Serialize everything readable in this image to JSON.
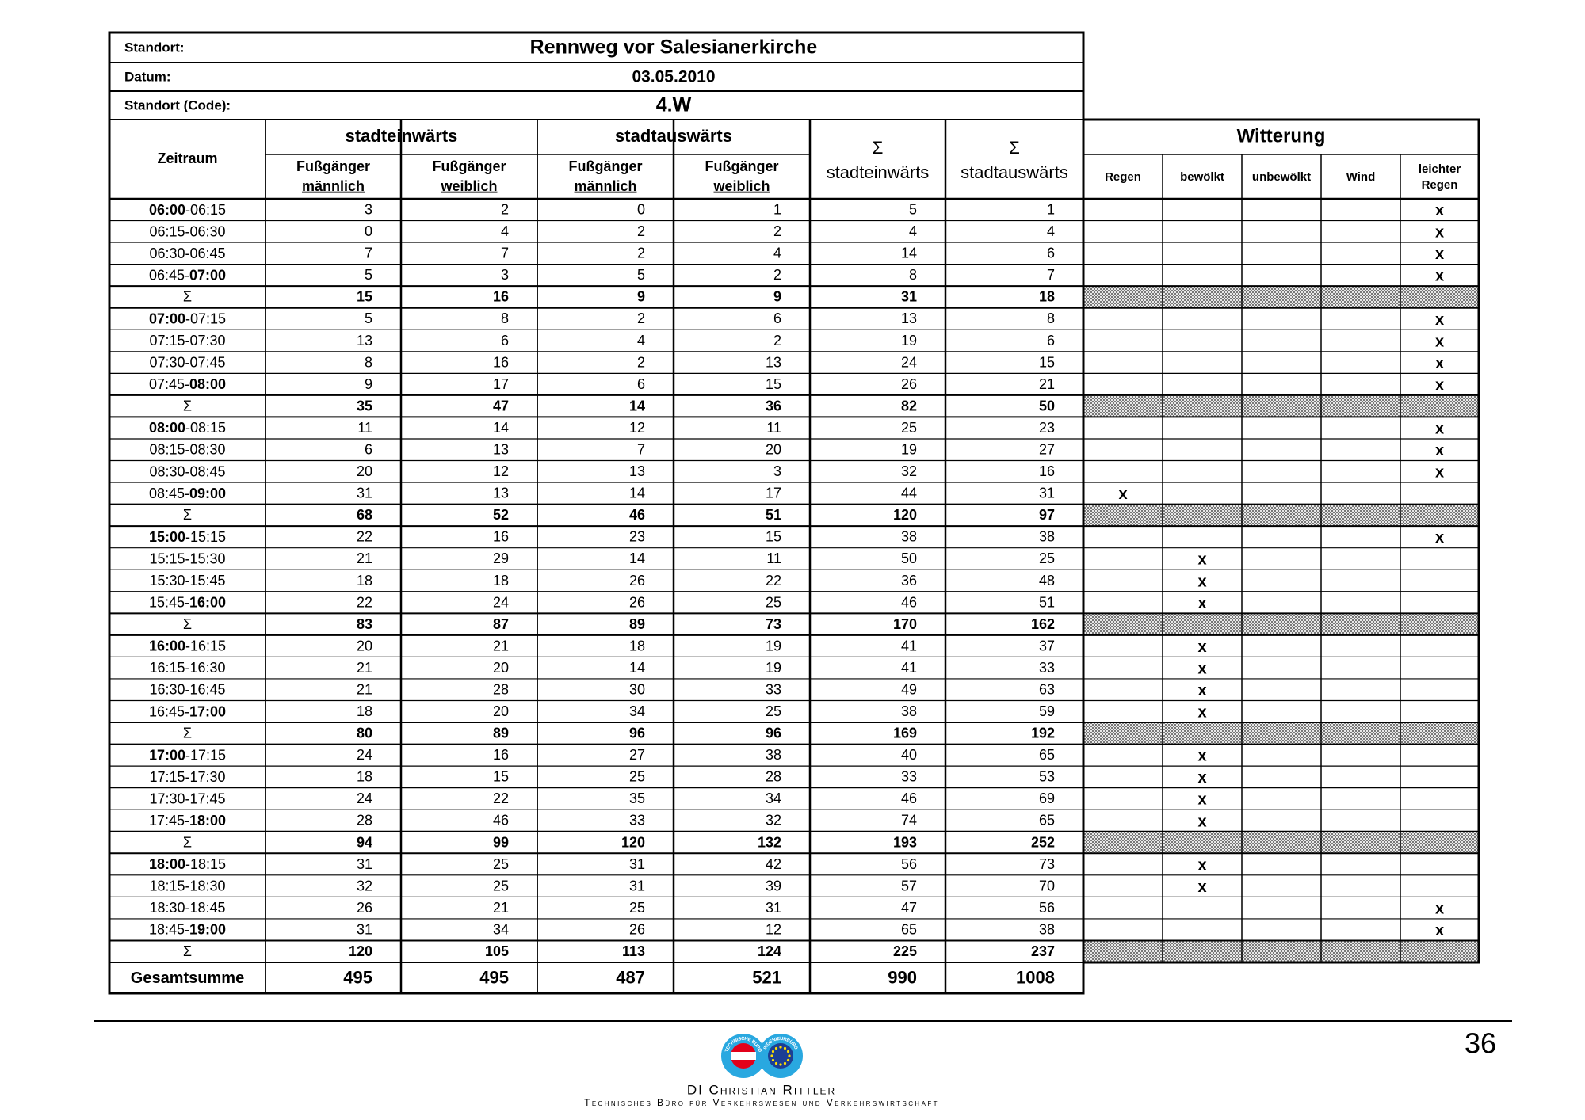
{
  "header": {
    "location_label": "Standort:",
    "location": "Rennweg vor Salesianerkirche",
    "date_label": "Datum:",
    "date": "03.05.2010",
    "code_label": "Standort (Code):",
    "code": "4.W"
  },
  "columns": {
    "time": "Zeitraum",
    "groups": [
      "stadteinwärts",
      "stadtauswärts"
    ],
    "sub": [
      {
        "line1": "Fußgänger",
        "line2": "männlich"
      },
      {
        "line1": "Fußgänger",
        "line2": "weiblich"
      },
      {
        "line1": "Fußgänger",
        "line2": "männlich"
      },
      {
        "line1": "Fußgänger",
        "line2": "weiblich"
      }
    ],
    "sums": [
      {
        "symbol": "Σ",
        "label": "stadteinwärts"
      },
      {
        "symbol": "Σ",
        "label": "stadtauswärts"
      }
    ]
  },
  "weather": {
    "title": "Witterung",
    "columns": [
      [
        "Regen"
      ],
      [
        "bewölkt"
      ],
      [
        "unbewölkt"
      ],
      [
        "Wind"
      ],
      [
        "leichter",
        "Regen"
      ]
    ]
  },
  "blocks": [
    {
      "rows": [
        {
          "time": "06:00-06:15",
          "counts": [
            3,
            2,
            0,
            1,
            5,
            1
          ],
          "weather": [
            null,
            null,
            null,
            null,
            "x"
          ]
        },
        {
          "time": "06:15-06:30",
          "counts": [
            0,
            4,
            2,
            2,
            4,
            4
          ],
          "weather": [
            null,
            null,
            null,
            null,
            "x"
          ]
        },
        {
          "time": "06:30-06:45",
          "counts": [
            7,
            7,
            2,
            4,
            14,
            6
          ],
          "weather": [
            null,
            null,
            null,
            null,
            "x"
          ]
        },
        {
          "time": "06:45-07:00",
          "counts": [
            5,
            3,
            5,
            2,
            8,
            7
          ],
          "weather": [
            null,
            null,
            null,
            null,
            "x"
          ]
        }
      ],
      "sum": {
        "label": "Σ",
        "counts": [
          15,
          16,
          9,
          9,
          31,
          18
        ]
      }
    },
    {
      "rows": [
        {
          "time": "07:00-07:15",
          "counts": [
            5,
            8,
            2,
            6,
            13,
            8
          ],
          "weather": [
            null,
            null,
            null,
            null,
            "x"
          ]
        },
        {
          "time": "07:15-07:30",
          "counts": [
            13,
            6,
            4,
            2,
            19,
            6
          ],
          "weather": [
            null,
            null,
            null,
            null,
            "x"
          ]
        },
        {
          "time": "07:30-07:45",
          "counts": [
            8,
            16,
            2,
            13,
            24,
            15
          ],
          "weather": [
            null,
            null,
            null,
            null,
            "x"
          ]
        },
        {
          "time": "07:45-08:00",
          "counts": [
            9,
            17,
            6,
            15,
            26,
            21
          ],
          "weather": [
            null,
            null,
            null,
            null,
            "x"
          ]
        }
      ],
      "sum": {
        "label": "Σ",
        "counts": [
          35,
          47,
          14,
          36,
          82,
          50
        ]
      }
    },
    {
      "rows": [
        {
          "time": "08:00-08:15",
          "counts": [
            11,
            14,
            12,
            11,
            25,
            23
          ],
          "weather": [
            null,
            null,
            null,
            null,
            "x"
          ]
        },
        {
          "time": "08:15-08:30",
          "counts": [
            6,
            13,
            7,
            20,
            19,
            27
          ],
          "weather": [
            null,
            null,
            null,
            null,
            "x"
          ]
        },
        {
          "time": "08:30-08:45",
          "counts": [
            20,
            12,
            13,
            3,
            32,
            16
          ],
          "weather": [
            null,
            null,
            null,
            null,
            "x"
          ]
        },
        {
          "time": "08:45-09:00",
          "counts": [
            31,
            13,
            14,
            17,
            44,
            31
          ],
          "weather": [
            "x",
            null,
            null,
            null,
            null
          ]
        }
      ],
      "sum": {
        "label": "Σ",
        "counts": [
          68,
          52,
          46,
          51,
          120,
          97
        ]
      }
    },
    {
      "rows": [
        {
          "time": "15:00-15:15",
          "counts": [
            22,
            16,
            23,
            15,
            38,
            38
          ],
          "weather": [
            null,
            null,
            null,
            null,
            "x"
          ]
        },
        {
          "time": "15:15-15:30",
          "counts": [
            21,
            29,
            14,
            11,
            50,
            25
          ],
          "weather": [
            null,
            "x",
            null,
            null,
            null
          ]
        },
        {
          "time": "15:30-15:45",
          "counts": [
            18,
            18,
            26,
            22,
            36,
            48
          ],
          "weather": [
            null,
            "x",
            null,
            null,
            null
          ]
        },
        {
          "time": "15:45-16:00",
          "counts": [
            22,
            24,
            26,
            25,
            46,
            51
          ],
          "weather": [
            null,
            "x",
            null,
            null,
            null
          ]
        }
      ],
      "sum": {
        "label": "Σ",
        "counts": [
          83,
          87,
          89,
          73,
          170,
          162
        ]
      }
    },
    {
      "rows": [
        {
          "time": "16:00-16:15",
          "counts": [
            20,
            21,
            18,
            19,
            41,
            37
          ],
          "weather": [
            null,
            "x",
            null,
            null,
            null
          ]
        },
        {
          "time": "16:15-16:30",
          "counts": [
            21,
            20,
            14,
            19,
            41,
            33
          ],
          "weather": [
            null,
            "x",
            null,
            null,
            null
          ]
        },
        {
          "time": "16:30-16:45",
          "counts": [
            21,
            28,
            30,
            33,
            49,
            63
          ],
          "weather": [
            null,
            "x",
            null,
            null,
            null
          ]
        },
        {
          "time": "16:45-17:00",
          "counts": [
            18,
            20,
            34,
            25,
            38,
            59
          ],
          "weather": [
            null,
            "x",
            null,
            null,
            null
          ]
        }
      ],
      "sum": {
        "label": "Σ",
        "counts": [
          80,
          89,
          96,
          96,
          169,
          192
        ]
      }
    },
    {
      "rows": [
        {
          "time": "17:00-17:15",
          "counts": [
            24,
            16,
            27,
            38,
            40,
            65
          ],
          "weather": [
            null,
            "x",
            null,
            null,
            null
          ]
        },
        {
          "time": "17:15-17:30",
          "counts": [
            18,
            15,
            25,
            28,
            33,
            53
          ],
          "weather": [
            null,
            "x",
            null,
            null,
            null
          ]
        },
        {
          "time": "17:30-17:45",
          "counts": [
            24,
            22,
            35,
            34,
            46,
            69
          ],
          "weather": [
            null,
            "x",
            null,
            null,
            null
          ]
        },
        {
          "time": "17:45-18:00",
          "counts": [
            28,
            46,
            33,
            32,
            74,
            65
          ],
          "weather": [
            null,
            "x",
            null,
            null,
            null
          ]
        }
      ],
      "sum": {
        "label": "Σ",
        "counts": [
          94,
          99,
          120,
          132,
          193,
          252
        ]
      }
    },
    {
      "rows": [
        {
          "time": "18:00-18:15",
          "counts": [
            31,
            25,
            31,
            42,
            56,
            73
          ],
          "weather": [
            null,
            "x",
            null,
            null,
            null
          ]
        },
        {
          "time": "18:15-18:30",
          "counts": [
            32,
            25,
            31,
            39,
            57,
            70
          ],
          "weather": [
            null,
            "x",
            null,
            null,
            null
          ]
        },
        {
          "time": "18:30-18:45",
          "counts": [
            26,
            21,
            25,
            31,
            47,
            56
          ],
          "weather": [
            null,
            null,
            null,
            null,
            "x"
          ]
        },
        {
          "time": "18:45-19:00",
          "counts": [
            31,
            34,
            26,
            12,
            65,
            38
          ],
          "weather": [
            null,
            null,
            null,
            null,
            "x"
          ]
        }
      ],
      "sum": {
        "label": "Σ",
        "counts": [
          120,
          105,
          113,
          124,
          225,
          237
        ]
      }
    }
  ],
  "total": {
    "label": "Gesamtsumme",
    "counts": [
      495,
      495,
      487,
      521,
      990,
      1008
    ]
  },
  "footer": {
    "page": 36,
    "logo": [
      "TECHNISCHE BÜRO",
      "INGENIEURBÜRO"
    ],
    "company": "DI Christian Rittler",
    "subtitle": "Technisches Büro für Verkehrswesen und Verkehrswirtschaft"
  }
}
